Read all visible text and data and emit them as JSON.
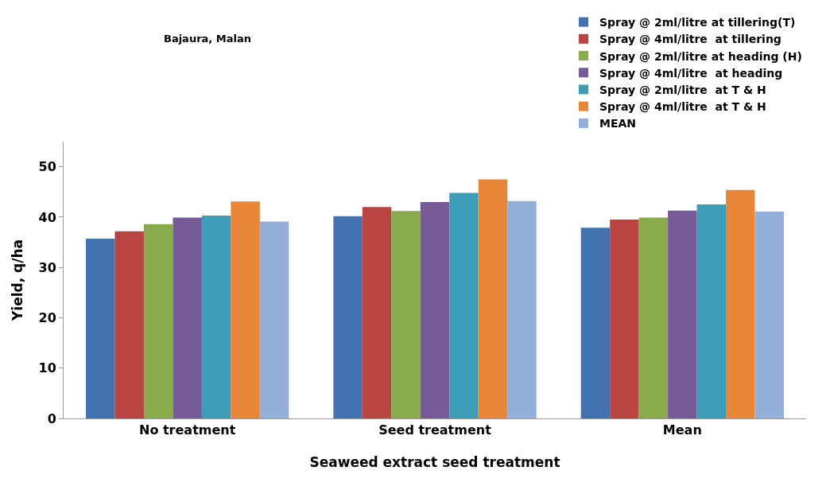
{
  "chart_data": {
    "type": "bar",
    "title": "Bajaura, Malan",
    "xlabel": "Seaweed extract seed treatment",
    "ylabel": "Yield, q/ha",
    "categories": [
      "No treatment",
      "Seed treatment",
      "Mean"
    ],
    "series": [
      {
        "name": "Spray @ 2ml/litre at tillering(T)",
        "color": "#4372b0",
        "values": [
          35.7,
          40.2,
          37.9
        ]
      },
      {
        "name": "Spray @ 4ml/litre  at tillering",
        "color": "#b94543",
        "values": [
          37.2,
          42,
          39.5
        ]
      },
      {
        "name": "Spray @ 2ml/litre at heading (H)",
        "color": "#8aab4b",
        "values": [
          38.6,
          41.2,
          39.9
        ]
      },
      {
        "name": "Spray @ 4ml/litre  at heading",
        "color": "#775a98",
        "values": [
          39.9,
          43,
          41.3
        ]
      },
      {
        "name": "Spray @ 2ml/litre  at T & H",
        "color": "#3d9cb6",
        "values": [
          40.3,
          44.8,
          42.5
        ]
      },
      {
        "name": "Spray @ 4ml/litre  at T & H",
        "color": "#e8863a",
        "values": [
          43.1,
          47.5,
          45.4
        ]
      },
      {
        "name": "MEAN",
        "color": "#94afd9",
        "values": [
          39.1,
          43.2,
          41.1
        ]
      }
    ],
    "ylim": [
      0,
      55
    ],
    "yticks": [
      0,
      10,
      20,
      30,
      40,
      50
    ],
    "legend": "top right"
  }
}
